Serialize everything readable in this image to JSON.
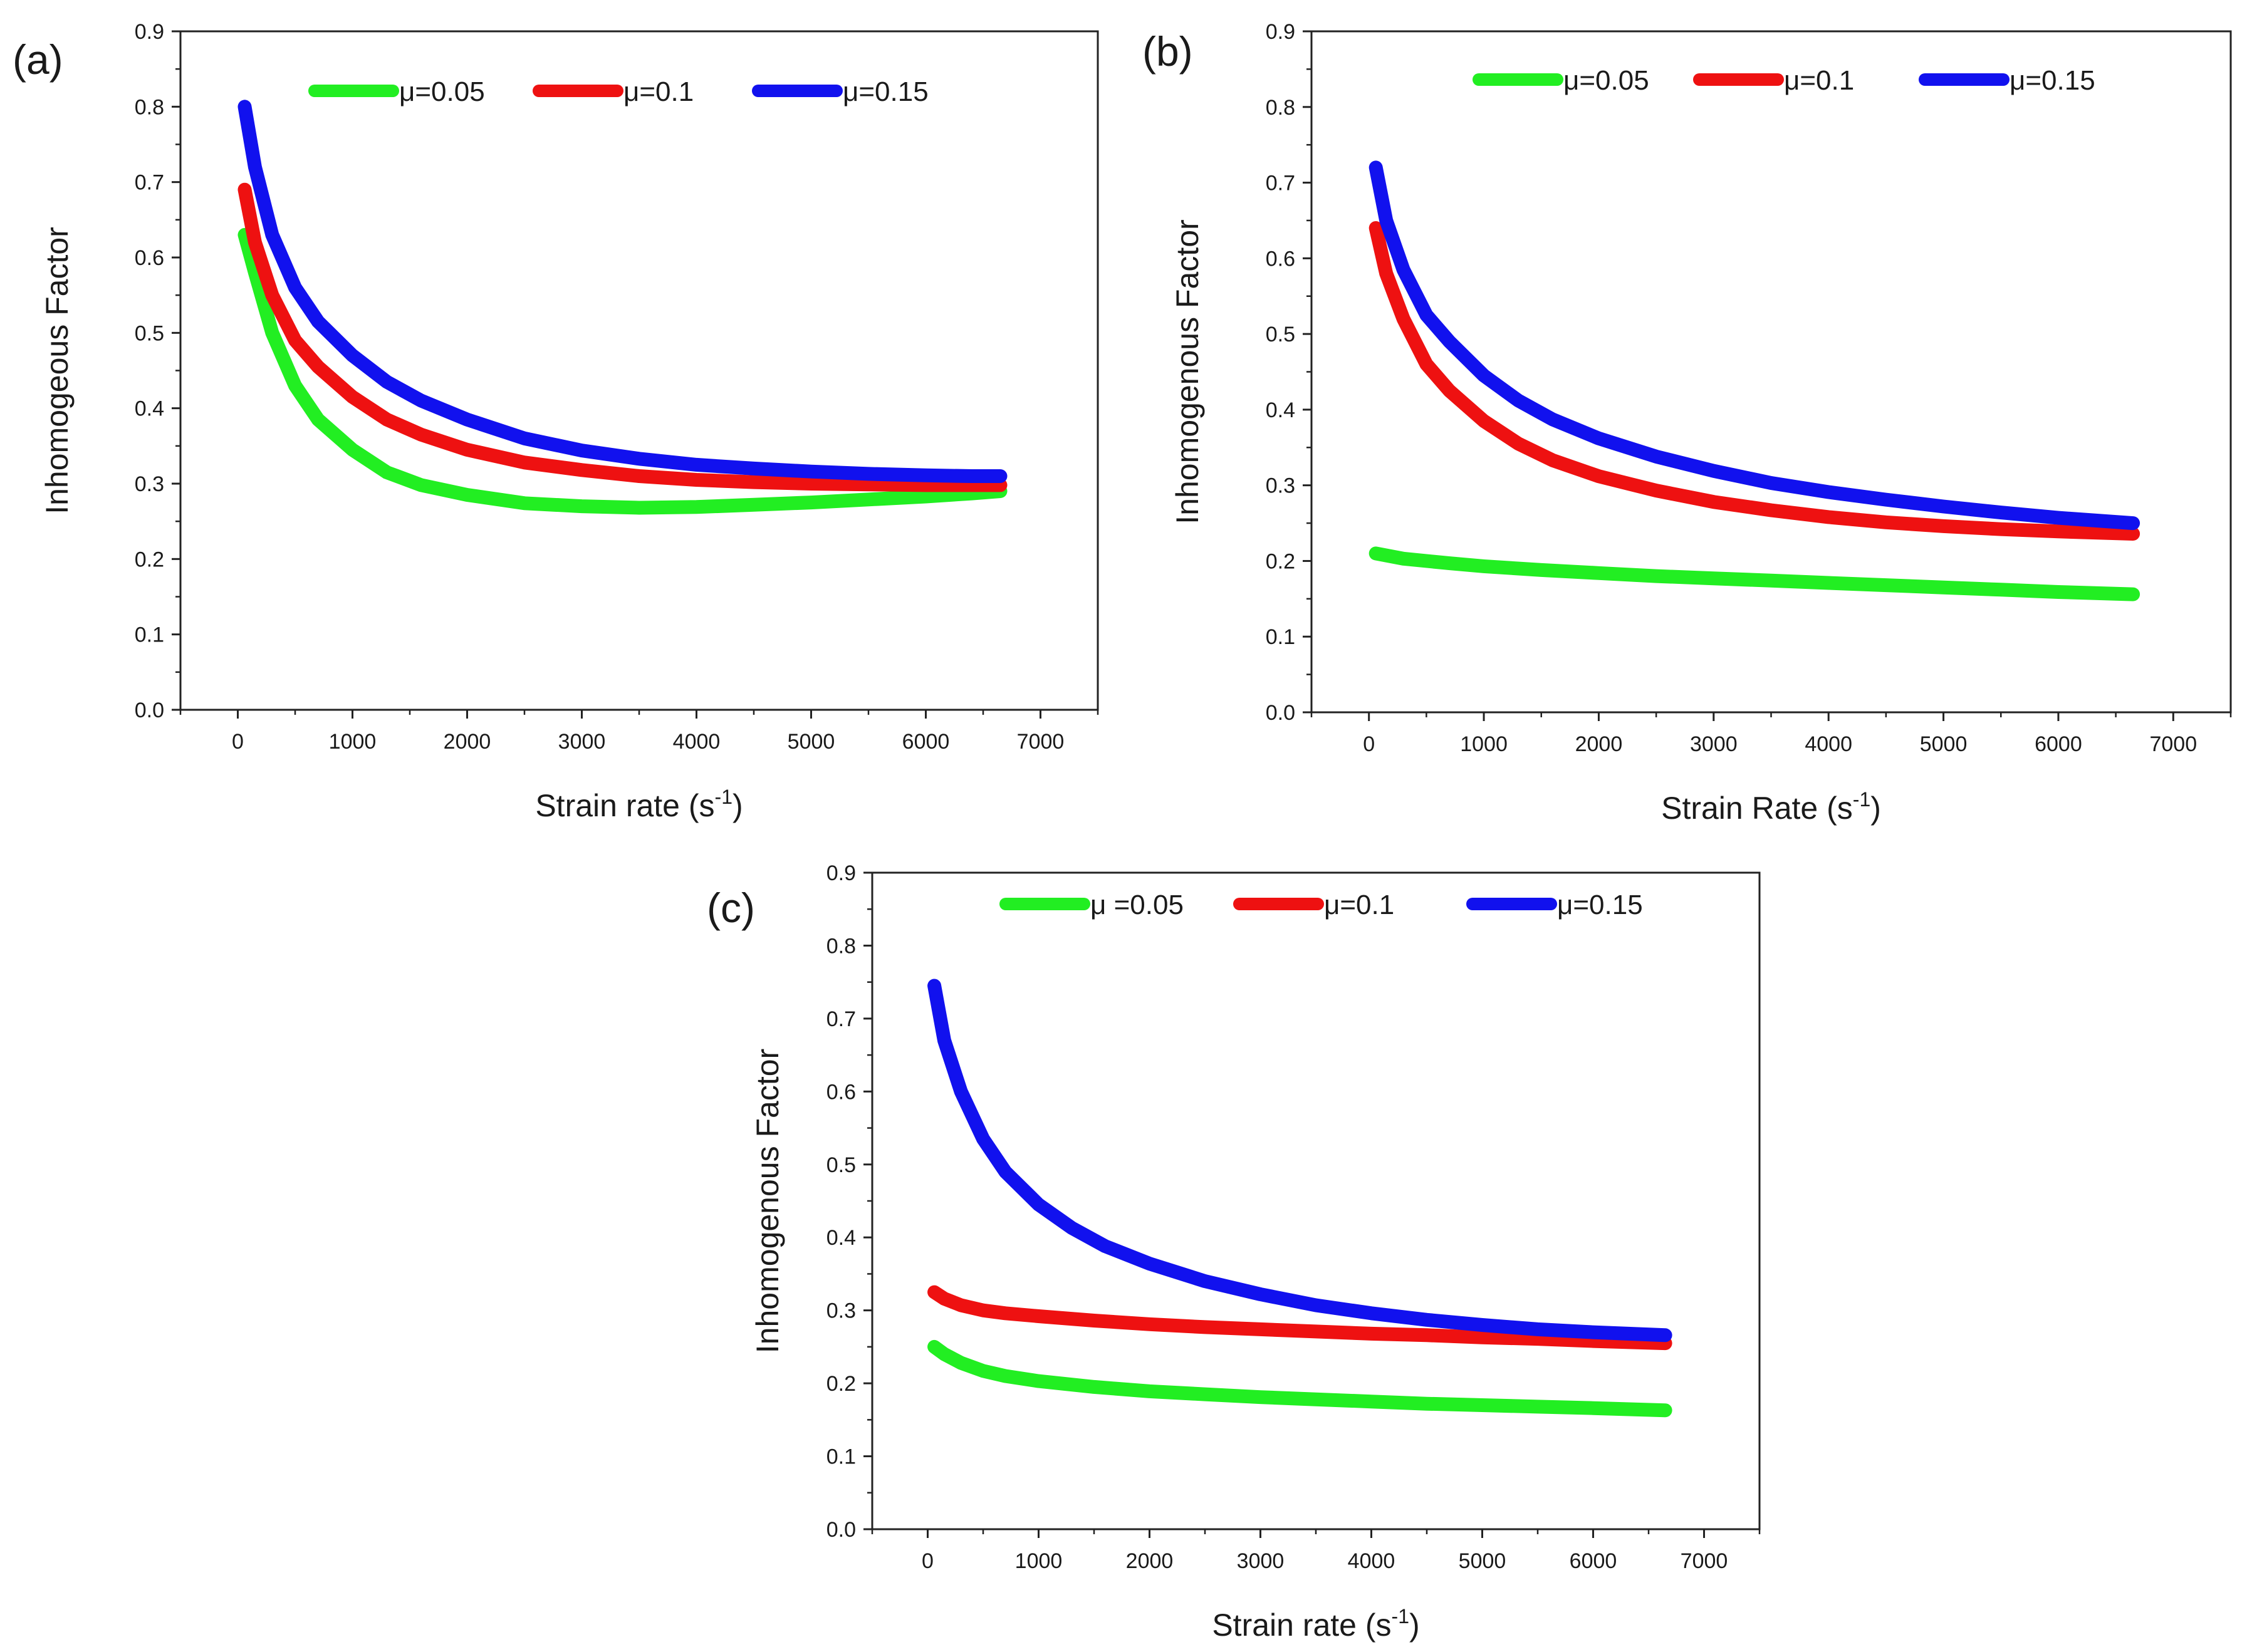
{
  "chart_data": [
    {
      "id": "a",
      "type": "line",
      "panel_label": "(a)",
      "xlabel": "Strain rate (s",
      "xlabel_sup": "-1",
      "xlabel_tail": ")",
      "ylabel": "Inhomogeous  Factor",
      "xlim": [
        -500,
        7500
      ],
      "ylim": [
        0,
        0.9
      ],
      "x_ticks": [
        0,
        1000,
        2000,
        3000,
        4000,
        5000,
        6000,
        7000
      ],
      "y_ticks": [
        0.0,
        0.1,
        0.2,
        0.3,
        0.4,
        0.5,
        0.6,
        0.7,
        0.8,
        0.9
      ],
      "legend": {
        "placement": "top"
      },
      "series": [
        {
          "name": "μ=0.05",
          "color": "#22ee22",
          "x": [
            60,
            150,
            300,
            500,
            700,
            1000,
            1300,
            1600,
            2000,
            2500,
            3000,
            3500,
            4000,
            4500,
            5000,
            5500,
            6000,
            6400,
            6650
          ],
          "y": [
            0.63,
            0.58,
            0.5,
            0.43,
            0.385,
            0.345,
            0.315,
            0.298,
            0.285,
            0.274,
            0.27,
            0.268,
            0.269,
            0.272,
            0.275,
            0.279,
            0.283,
            0.287,
            0.29
          ]
        },
        {
          "name": "μ=0.1",
          "color": "#ee1111",
          "x": [
            60,
            150,
            300,
            500,
            700,
            1000,
            1300,
            1600,
            2000,
            2500,
            3000,
            3500,
            4000,
            4500,
            5000,
            5500,
            6000,
            6400,
            6650
          ],
          "y": [
            0.69,
            0.62,
            0.55,
            0.49,
            0.455,
            0.415,
            0.385,
            0.365,
            0.345,
            0.328,
            0.318,
            0.31,
            0.305,
            0.302,
            0.3,
            0.299,
            0.298,
            0.298,
            0.298
          ]
        },
        {
          "name": "μ=0.15",
          "color": "#1111ee",
          "x": [
            60,
            150,
            300,
            500,
            700,
            1000,
            1300,
            1600,
            2000,
            2500,
            3000,
            3500,
            4000,
            4500,
            5000,
            5500,
            6000,
            6400,
            6650
          ],
          "y": [
            0.8,
            0.72,
            0.63,
            0.56,
            0.515,
            0.47,
            0.435,
            0.41,
            0.385,
            0.36,
            0.344,
            0.333,
            0.325,
            0.32,
            0.316,
            0.313,
            0.311,
            0.31,
            0.31
          ]
        }
      ]
    },
    {
      "id": "b",
      "type": "line",
      "panel_label": "(b)",
      "xlabel": "Strain Rate (s",
      "xlabel_sup": "-1",
      "xlabel_tail": ")",
      "ylabel": "Inhomogenous Factor",
      "xlim": [
        -500,
        7500
      ],
      "ylim": [
        0,
        0.9
      ],
      "x_ticks": [
        0,
        1000,
        2000,
        3000,
        4000,
        5000,
        6000,
        7000
      ],
      "y_ticks": [
        0.0,
        0.1,
        0.2,
        0.3,
        0.4,
        0.5,
        0.6,
        0.7,
        0.8,
        0.9
      ],
      "legend": {
        "placement": "top"
      },
      "series": [
        {
          "name": "μ=0.05",
          "color": "#22ee22",
          "x": [
            60,
            300,
            700,
            1000,
            1500,
            2000,
            2500,
            3000,
            3500,
            4000,
            4500,
            5000,
            5500,
            6000,
            6650
          ],
          "y": [
            0.21,
            0.203,
            0.197,
            0.193,
            0.188,
            0.184,
            0.18,
            0.177,
            0.174,
            0.171,
            0.168,
            0.165,
            0.162,
            0.159,
            0.156
          ]
        },
        {
          "name": "μ=0.1",
          "color": "#ee1111",
          "x": [
            60,
            150,
            300,
            500,
            700,
            1000,
            1300,
            1600,
            2000,
            2500,
            3000,
            3500,
            4000,
            4500,
            5000,
            5500,
            6000,
            6650
          ],
          "y": [
            0.64,
            0.58,
            0.52,
            0.46,
            0.425,
            0.385,
            0.355,
            0.333,
            0.312,
            0.293,
            0.278,
            0.267,
            0.258,
            0.251,
            0.246,
            0.242,
            0.239,
            0.236
          ]
        },
        {
          "name": "μ=0.15",
          "color": "#1111ee",
          "x": [
            60,
            150,
            300,
            500,
            700,
            1000,
            1300,
            1600,
            2000,
            2500,
            3000,
            3500,
            4000,
            4500,
            5000,
            5500,
            6000,
            6650
          ],
          "y": [
            0.72,
            0.65,
            0.585,
            0.525,
            0.49,
            0.445,
            0.412,
            0.387,
            0.362,
            0.338,
            0.319,
            0.303,
            0.291,
            0.281,
            0.272,
            0.264,
            0.257,
            0.25
          ]
        }
      ]
    },
    {
      "id": "c",
      "type": "line",
      "panel_label": "(c)",
      "xlabel": "Strain rate (s",
      "xlabel_sup": "-1",
      "xlabel_tail": ")",
      "ylabel": "Inhomogenous Factor",
      "xlim": [
        -500,
        7500
      ],
      "ylim": [
        0,
        0.9
      ],
      "x_ticks": [
        0,
        1000,
        2000,
        3000,
        4000,
        5000,
        6000,
        7000
      ],
      "y_ticks": [
        0.0,
        0.1,
        0.2,
        0.3,
        0.4,
        0.5,
        0.6,
        0.7,
        0.8,
        0.9
      ],
      "legend": {
        "placement": "top"
      },
      "series": [
        {
          "name": "μ =0.05",
          "color": "#22ee22",
          "x": [
            60,
            150,
            300,
            500,
            700,
            1000,
            1500,
            2000,
            2500,
            3000,
            3500,
            4000,
            4500,
            5000,
            5500,
            6000,
            6650
          ],
          "y": [
            0.25,
            0.24,
            0.228,
            0.217,
            0.21,
            0.203,
            0.195,
            0.189,
            0.185,
            0.181,
            0.178,
            0.175,
            0.172,
            0.17,
            0.168,
            0.166,
            0.163
          ]
        },
        {
          "name": "μ=0.1",
          "color": "#ee1111",
          "x": [
            60,
            150,
            300,
            500,
            700,
            1000,
            1500,
            2000,
            2500,
            3000,
            3500,
            4000,
            4500,
            5000,
            5500,
            6000,
            6650
          ],
          "y": [
            0.325,
            0.316,
            0.307,
            0.3,
            0.296,
            0.292,
            0.286,
            0.281,
            0.277,
            0.274,
            0.271,
            0.268,
            0.266,
            0.263,
            0.261,
            0.258,
            0.255
          ]
        },
        {
          "name": "μ=0.15",
          "color": "#1111ee",
          "x": [
            60,
            150,
            300,
            500,
            700,
            1000,
            1300,
            1600,
            2000,
            2500,
            3000,
            3500,
            4000,
            4500,
            5000,
            5500,
            6000,
            6650
          ],
          "y": [
            0.745,
            0.67,
            0.6,
            0.535,
            0.49,
            0.445,
            0.413,
            0.388,
            0.364,
            0.34,
            0.322,
            0.307,
            0.296,
            0.287,
            0.28,
            0.274,
            0.27,
            0.266
          ]
        }
      ]
    }
  ]
}
